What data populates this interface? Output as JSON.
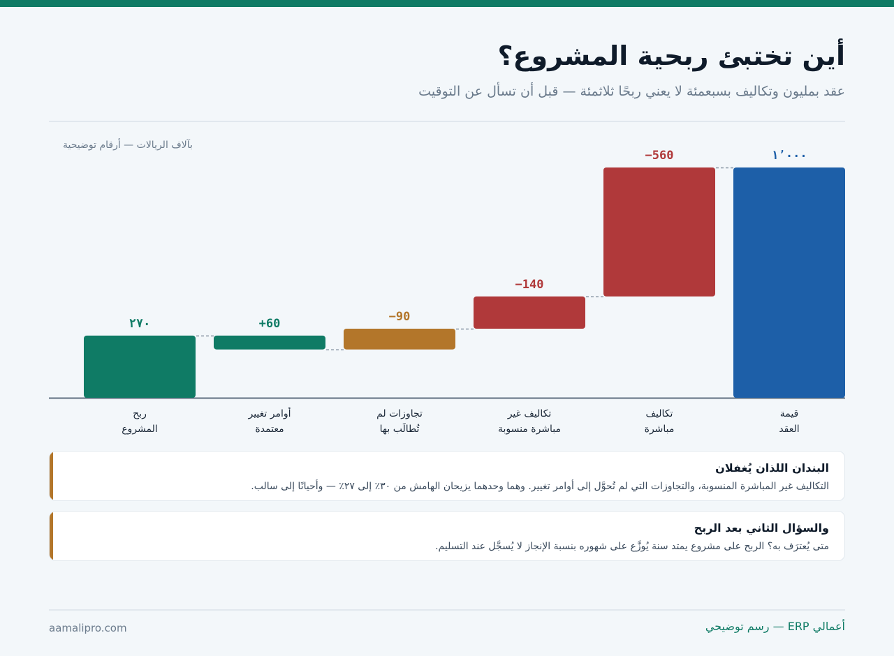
{
  "title": "أين تختبئ ربحية المشروع؟",
  "subtitle": "عقد بمليون وتكاليف بسبعمئة لا يعني ربحًا ثلاثمئة — قبل أن تسأل عن التوقيت",
  "unit_note": "بآلاف الريالات — أرقام توضيحية",
  "colors": {
    "total": "#1d5fa8",
    "cost": "#b0393a",
    "overrun": "#b3762a",
    "gain": "#0f7b65",
    "profit": "#0f7b65"
  },
  "chart_data": {
    "type": "bar",
    "subtype": "waterfall",
    "categories": [
      "قيمة\nالعقد",
      "تكاليف\nمباشرة",
      "تكاليف غير\nمباشرة منسوبة",
      "تجاوزات لم\nتُطالَب بها",
      "أوامر تغيير\nمعتمدة",
      "ربح\nالمشروع"
    ],
    "values": [
      1000,
      -560,
      -140,
      -90,
      60,
      270
    ],
    "value_labels": [
      "١٬٠٠٠",
      "−560",
      "−140",
      "−90",
      "+60",
      "٢٧٠"
    ],
    "kinds": [
      "total",
      "cost",
      "cost",
      "overrun",
      "gain",
      "profit"
    ],
    "ylim": [
      0,
      1000
    ],
    "xlabel": "",
    "ylabel": ""
  },
  "cards": [
    {
      "title": "البندان اللذان يُغفلان",
      "body": "التكاليف غير المباشرة المنسوبة، والتجاوزات التي لم تُحوَّل إلى أوامر تغيير. وهما وحدهما يزيحان الهامش من ٣٠٪ إلى ٢٧٪ — وأحيانًا إلى سالب."
    },
    {
      "title": "والسؤال الثاني بعد الربح",
      "body": "متى يُعترَف به؟ الربح على مشروع يمتد سنة يُوزَّع على شهوره بنسبة الإنجاز لا يُسجَّل عند التسليم."
    }
  ],
  "footer": {
    "brand": "أعمالي ERP — رسم توضيحي",
    "site": "aamalipro.com"
  }
}
